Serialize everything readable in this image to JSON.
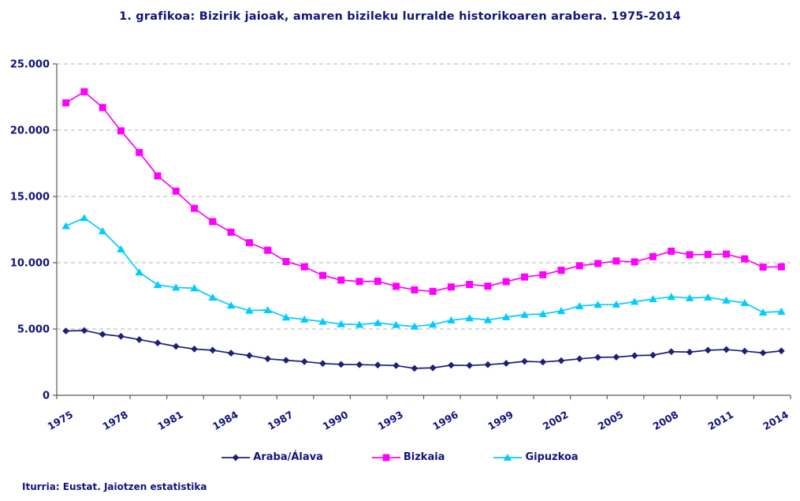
{
  "title": "1. grafikoa: Bizirik jaioak, amaren bizileku lurralde historikoaren arabera. 1975-2014",
  "source": "Iturria: Eustat. Jaiotzen estatistika",
  "colors": {
    "text_navy": "#13137E",
    "grid": "#B3B3B3",
    "axis": "#5A5A5A",
    "araba": "#1F1F7A",
    "bizkaia": "#FF00FF",
    "gipuzkoa": "#00CCFF"
  },
  "chart_data": {
    "type": "line",
    "title": "1. grafikoa: Bizirik jaioak, amaren bizileku lurralde historikoaren arabera. 1975-2014",
    "xlabel": "",
    "ylabel": "",
    "ylim": [
      0,
      25000
    ],
    "y_ticks": [
      0,
      5000,
      10000,
      15000,
      20000,
      25000
    ],
    "y_tick_labels": [
      "0",
      "5.000",
      "10.000",
      "15.000",
      "20.000",
      "25.000"
    ],
    "grid": "horizontal-dashed",
    "legend_position": "bottom",
    "x": [
      1975,
      1976,
      1977,
      1978,
      1979,
      1980,
      1981,
      1982,
      1983,
      1984,
      1985,
      1986,
      1987,
      1988,
      1989,
      1990,
      1991,
      1992,
      1993,
      1994,
      1995,
      1996,
      1997,
      1998,
      1999,
      2000,
      2001,
      2002,
      2003,
      2004,
      2005,
      2006,
      2007,
      2008,
      2009,
      2010,
      2011,
      2012,
      2013,
      2014
    ],
    "x_tick_labels": [
      1975,
      1978,
      1981,
      1984,
      1987,
      1990,
      1993,
      1996,
      1999,
      2002,
      2005,
      2008,
      2011,
      2014
    ],
    "series": [
      {
        "name": "Araba/Álava",
        "color": "#1F1F7A",
        "marker": "diamond",
        "values": [
          4850,
          4890,
          4600,
          4450,
          4200,
          3950,
          3690,
          3490,
          3400,
          3180,
          3000,
          2750,
          2640,
          2540,
          2400,
          2330,
          2310,
          2280,
          2240,
          2030,
          2070,
          2270,
          2250,
          2310,
          2410,
          2560,
          2510,
          2610,
          2750,
          2860,
          2880,
          2990,
          3030,
          3290,
          3260,
          3400,
          3450,
          3330,
          3200,
          3350
        ]
      },
      {
        "name": "Bizkaia",
        "color": "#FF00FF",
        "marker": "square",
        "values": [
          22060,
          22900,
          21710,
          19950,
          18320,
          16550,
          15400,
          14100,
          13100,
          12300,
          11510,
          10940,
          10090,
          9690,
          9040,
          8690,
          8580,
          8600,
          8220,
          7950,
          7840,
          8170,
          8360,
          8230,
          8570,
          8920,
          9090,
          9430,
          9770,
          9940,
          10130,
          10060,
          10460,
          10870,
          10600,
          10630,
          10650,
          10290,
          9670,
          9690
        ]
      },
      {
        "name": "Gipuzkoa",
        "color": "#00CCFF",
        "marker": "triangle",
        "values": [
          12770,
          13380,
          12390,
          11020,
          9280,
          8330,
          8130,
          8080,
          7380,
          6780,
          6390,
          6430,
          5880,
          5720,
          5560,
          5370,
          5330,
          5460,
          5310,
          5190,
          5340,
          5660,
          5820,
          5680,
          5900,
          6080,
          6140,
          6360,
          6730,
          6840,
          6850,
          7060,
          7260,
          7430,
          7340,
          7390,
          7160,
          6970,
          6250,
          6320
        ]
      }
    ]
  }
}
